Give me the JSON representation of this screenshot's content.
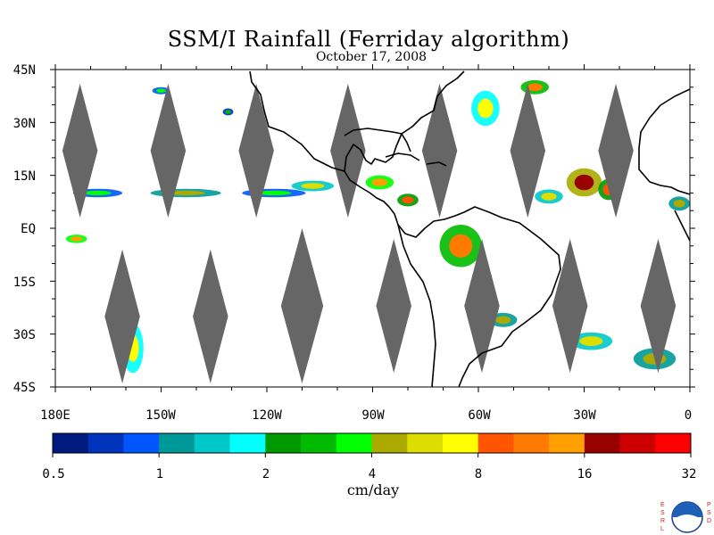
{
  "title": "SSM/I Rainfall (Ferriday algorithm)",
  "date": "October 17, 2008",
  "lat_labels": [
    "45N",
    "30N",
    "15N",
    "EQ",
    "15S",
    "30S",
    "45S"
  ],
  "lon_labels": [
    "180E",
    "150W",
    "120W",
    "90W",
    "60W",
    "30W",
    "0"
  ],
  "colorbar": {
    "units": "cm/day",
    "tick_labels": [
      "0.5",
      "1",
      "2",
      "4",
      "8",
      "16",
      "32"
    ],
    "colors": [
      "#001a80",
      "#0033bb",
      "#0055ff",
      "#009999",
      "#00c8c8",
      "#00ffff",
      "#009900",
      "#00bb00",
      "#00ff00",
      "#aaaa00",
      "#dddd00",
      "#ffff00",
      "#ff5500",
      "#ff7a00",
      "#ffa000",
      "#990000",
      "#cc0000",
      "#ff0000"
    ]
  },
  "map": {
    "lon_range": [
      -180,
      0
    ],
    "lat_range": [
      -45,
      45
    ],
    "no_data_color": "#666666",
    "land_outline_color": "#000000",
    "no_data_gaps": [
      {
        "center_lon": -173,
        "center_lat": 22,
        "lon_halfwidth": 5,
        "lat_halfwidth": 19
      },
      {
        "center_lon": -148,
        "center_lat": 22,
        "lon_halfwidth": 5,
        "lat_halfwidth": 19
      },
      {
        "center_lon": -123,
        "center_lat": 22,
        "lon_halfwidth": 5,
        "lat_halfwidth": 19
      },
      {
        "center_lon": -97,
        "center_lat": 22,
        "lon_halfwidth": 5,
        "lat_halfwidth": 19
      },
      {
        "center_lon": -71,
        "center_lat": 22,
        "lon_halfwidth": 5,
        "lat_halfwidth": 19
      },
      {
        "center_lon": -46,
        "center_lat": 22,
        "lon_halfwidth": 5,
        "lat_halfwidth": 19
      },
      {
        "center_lon": -21,
        "center_lat": 22,
        "lon_halfwidth": 5,
        "lat_halfwidth": 19
      },
      {
        "center_lon": -161,
        "center_lat": -25,
        "lon_halfwidth": 5,
        "lat_halfwidth": 19
      },
      {
        "center_lon": -136,
        "center_lat": -25,
        "lon_halfwidth": 5,
        "lat_halfwidth": 19
      },
      {
        "center_lon": -110,
        "center_lat": -22,
        "lon_halfwidth": 6,
        "lat_halfwidth": 22
      },
      {
        "center_lon": -84,
        "center_lat": -22,
        "lon_halfwidth": 5,
        "lat_halfwidth": 19
      },
      {
        "center_lon": -59,
        "center_lat": -22,
        "lon_halfwidth": 5,
        "lat_halfwidth": 19
      },
      {
        "center_lon": -34,
        "center_lat": -22,
        "lon_halfwidth": 5,
        "lat_halfwidth": 19
      },
      {
        "center_lon": -9,
        "center_lat": -22,
        "lon_halfwidth": 5,
        "lat_halfwidth": 19
      }
    ],
    "rain_patches": [
      {
        "lon": -168,
        "lat": 10,
        "rx": 7,
        "ry": 1.2,
        "level": 8
      },
      {
        "lon": -143,
        "lat": 10,
        "rx": 10,
        "ry": 1.2,
        "level": 9
      },
      {
        "lon": -118,
        "lat": 10,
        "rx": 9,
        "ry": 1.2,
        "level": 8
      },
      {
        "lon": -107,
        "lat": 12,
        "rx": 6,
        "ry": 1.5,
        "level": 10
      },
      {
        "lon": -88,
        "lat": 13,
        "rx": 4,
        "ry": 2,
        "level": 14
      },
      {
        "lon": -80,
        "lat": 8,
        "rx": 3,
        "ry": 1.8,
        "level": 12
      },
      {
        "lon": -58,
        "lat": 34,
        "rx": 4,
        "ry": 5,
        "level": 11
      },
      {
        "lon": -44,
        "lat": 40,
        "rx": 4,
        "ry": 2,
        "level": 13
      },
      {
        "lon": -30,
        "lat": 13,
        "rx": 5,
        "ry": 4,
        "level": 15
      },
      {
        "lon": -23,
        "lat": 11,
        "rx": 3,
        "ry": 3,
        "level": 12
      },
      {
        "lon": -40,
        "lat": 9,
        "rx": 4,
        "ry": 2,
        "level": 10
      },
      {
        "lon": -3,
        "lat": 7,
        "rx": 3,
        "ry": 2,
        "level": 9
      },
      {
        "lon": -174,
        "lat": -3,
        "rx": 3,
        "ry": 1.2,
        "level": 14
      },
      {
        "lon": -158,
        "lat": -34,
        "rx": 3,
        "ry": 7,
        "level": 11
      },
      {
        "lon": -53,
        "lat": -26,
        "rx": 4,
        "ry": 2,
        "level": 9
      },
      {
        "lon": -28,
        "lat": -32,
        "rx": 6,
        "ry": 2.5,
        "level": 10
      },
      {
        "lon": -10,
        "lat": -37,
        "rx": 6,
        "ry": 3,
        "level": 9
      },
      {
        "lon": -65,
        "lat": -5,
        "rx": 6,
        "ry": 6,
        "level": 13
      },
      {
        "lon": -150,
        "lat": 39,
        "rx": 2.5,
        "ry": 1,
        "level": 8
      },
      {
        "lon": -131,
        "lat": 33,
        "rx": 1.5,
        "ry": 1,
        "level": 7
      }
    ]
  }
}
